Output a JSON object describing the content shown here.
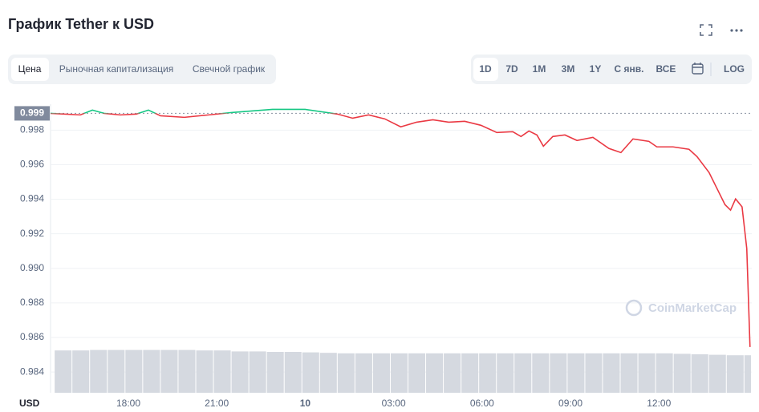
{
  "chart_data": {
    "type": "line",
    "title": "График Tether к USD",
    "tabs": [
      "Цена",
      "Рыночная капитализация",
      "Свечной график"
    ],
    "ranges": [
      "1D",
      "7D",
      "1M",
      "3M",
      "1Y",
      "С янв.",
      "ВСЕ"
    ],
    "log_button": "LOG",
    "y_label": "USD",
    "watermark": "CoinMarketCap",
    "reference": {
      "value": 0.99897,
      "label": "0.999"
    },
    "up_color": "#16c784",
    "down_color": "#ea3943",
    "x": [
      15.36,
      16.37,
      16.78,
      17.18,
      17.73,
      18.27,
      18.68,
      19.09,
      19.9,
      20.72,
      21.53,
      22.89,
      24.0,
      25.09,
      25.61,
      26.15,
      26.7,
      27.24,
      27.78,
      28.33,
      28.87,
      29.41,
      29.96,
      30.5,
      31.04,
      31.32,
      31.59,
      31.86,
      32.08,
      32.4,
      32.81,
      33.22,
      33.76,
      34.3,
      34.71,
      35.12,
      35.66,
      35.93,
      36.48,
      37.02,
      37.29,
      37.7,
      37.97,
      38.24,
      38.43,
      38.6,
      38.82,
      38.98,
      39.09
    ],
    "series": [
      {
        "name": "Цена",
        "values": [
          0.99897,
          0.99888,
          0.99916,
          0.99897,
          0.99888,
          0.99893,
          0.99916,
          0.99883,
          0.99874,
          0.99888,
          0.99902,
          0.9992,
          0.9992,
          0.99893,
          0.99869,
          0.99888,
          0.99865,
          0.99819,
          0.99846,
          0.9986,
          0.99846,
          0.99851,
          0.99828,
          0.99786,
          0.99791,
          0.99763,
          0.99795,
          0.99772,
          0.99707,
          0.99763,
          0.99772,
          0.9974,
          0.99758,
          0.99694,
          0.9967,
          0.99749,
          0.99735,
          0.99703,
          0.99703,
          0.99689,
          0.99647,
          0.99555,
          0.99462,
          0.99369,
          0.99337,
          0.99402,
          0.99356,
          0.99115,
          0.98545
        ]
      }
    ],
    "volume": {
      "color": "#d5d9e0",
      "x": [
        15.5,
        16.1,
        16.7,
        17.3,
        17.9,
        18.5,
        19.1,
        19.7,
        20.3,
        20.9,
        21.5,
        22.1,
        22.7,
        23.3,
        23.9,
        24.5,
        25.1,
        25.7,
        26.3,
        26.9,
        27.5,
        28.1,
        28.7,
        29.3,
        29.9,
        30.5,
        31.1,
        31.7,
        32.3,
        32.9,
        33.5,
        34.1,
        34.7,
        35.3,
        35.9,
        36.5,
        37.1,
        37.7,
        38.3,
        38.9
      ],
      "values": [
        88,
        88,
        89,
        89,
        89,
        89,
        89,
        89,
        88,
        88,
        86,
        86,
        85,
        85,
        84,
        83,
        82,
        82,
        82,
        82,
        82,
        82,
        82,
        82,
        82,
        82,
        82,
        82,
        82,
        82,
        82,
        82,
        82,
        82,
        82,
        81,
        80,
        79,
        78,
        78
      ]
    },
    "y2lim": [
      0,
      100
    ],
    "xlim": [
      15.36,
      39.15
    ],
    "xticks": [
      {
        "value": 18,
        "label": "18:00"
      },
      {
        "value": 21,
        "label": "21:00"
      },
      {
        "value": 24,
        "label": "10"
      },
      {
        "value": 27,
        "label": "03:00"
      },
      {
        "value": 30,
        "label": "06:00"
      },
      {
        "value": 33,
        "label": "09:00"
      },
      {
        "value": 36,
        "label": "12:00"
      }
    ],
    "ylim": [
      0.9828,
      0.9995
    ],
    "yticks": [
      0.984,
      0.986,
      0.988,
      {
        "value": 0.99,
        "label": "0.990"
      },
      0.992,
      0.994,
      0.996,
      0.998
    ],
    "grid": true
  }
}
